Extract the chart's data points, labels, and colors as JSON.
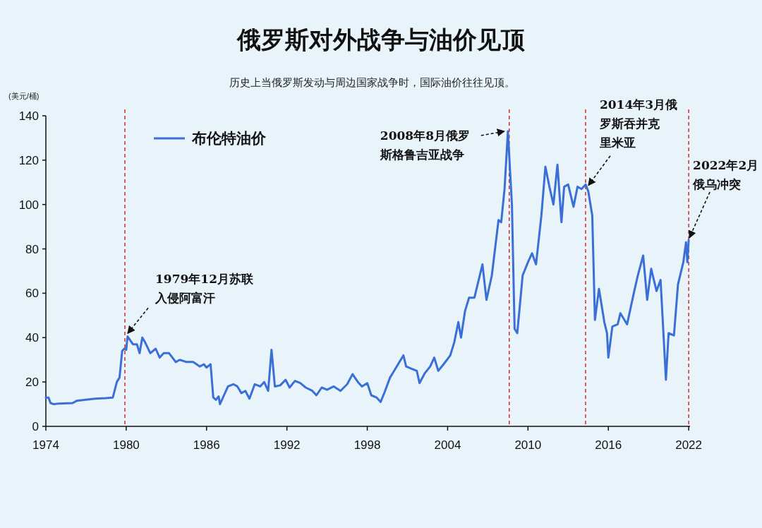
{
  "chart_data": {
    "type": "line",
    "title": "俄罗斯对外战争与油价见顶",
    "subtitle": "历史上当俄罗斯发动与周边国家战争时，国际油价往往见顶。",
    "ylabel": "(美元/桶)",
    "x": [
      1974.0,
      1974.2,
      1974.35,
      1974.6,
      1975,
      1976,
      1976.3,
      1977,
      1977.7,
      1978.5,
      1979.0,
      1979.3,
      1979.5,
      1979.7,
      1979.85,
      1980.0,
      1980.1,
      1980.5,
      1980.8,
      1981.0,
      1981.2,
      1981.4,
      1981.8,
      1982.2,
      1982.5,
      1982.8,
      1983.2,
      1983.7,
      1984,
      1984.5,
      1985,
      1985.5,
      1985.8,
      1986.0,
      1986.3,
      1986.5,
      1986.7,
      1986.9,
      1987.0,
      1987.3,
      1987.6,
      1988.0,
      1988.3,
      1988.6,
      1988.9,
      1989.2,
      1989.6,
      1990.0,
      1990.3,
      1990.6,
      1990.85,
      1991.1,
      1991.5,
      1991.9,
      1992.2,
      1992.6,
      1993,
      1993.4,
      1993.9,
      1994.2,
      1994.6,
      1995,
      1995.5,
      1996,
      1996.5,
      1996.9,
      1997.3,
      1997.6,
      1998,
      1998.3,
      1998.7,
      1999.0,
      1999.3,
      1999.7,
      2000.0,
      2000.3,
      2000.7,
      2000.9,
      2001.3,
      2001.7,
      2001.9,
      2002.3,
      2002.7,
      2003.0,
      2003.3,
      2003.7,
      2004.2,
      2004.5,
      2004.8,
      2005.0,
      2005.3,
      2005.6,
      2006.0,
      2006.2,
      2006.6,
      2006.9,
      2007.3,
      2007.8,
      2008.0,
      2008.25,
      2008.5,
      2008.8,
      2009.0,
      2009.2,
      2009.6,
      2010.0,
      2010.3,
      2010.6,
      2011.0,
      2011.3,
      2011.6,
      2011.9,
      2012.2,
      2012.5,
      2012.7,
      2013.0,
      2013.4,
      2013.7,
      2014.0,
      2014.3,
      2014.5,
      2014.8,
      2015.0,
      2015.3,
      2015.7,
      2015.9,
      2016.0,
      2016.3,
      2016.7,
      2016.9,
      2017.4,
      2017.9,
      2018.2,
      2018.6,
      2018.9,
      2019.2,
      2019.6,
      2019.9,
      2020.3,
      2020.5,
      2020.9,
      2021.2,
      2021.6,
      2021.8,
      2021.9,
      2022.0
    ],
    "series": [
      {
        "name": "布伦特油价",
        "color": "#3a6fd8",
        "values": [
          13,
          13,
          10.5,
          10,
          10.3,
          10.5,
          11.5,
          12,
          12.5,
          12.7,
          13,
          20,
          22,
          34,
          35,
          34.5,
          40.5,
          37,
          37,
          33,
          40,
          38,
          33,
          35,
          31,
          33,
          33,
          29,
          30,
          29,
          29,
          27,
          28,
          26.5,
          28,
          13,
          12,
          13.5,
          10,
          14,
          18,
          19,
          18,
          15,
          16,
          12.5,
          19,
          18,
          20,
          16,
          34.5,
          18,
          18.5,
          21,
          17.5,
          20.5,
          19.5,
          17.5,
          16,
          14,
          17.5,
          16.5,
          18,
          16,
          19,
          23.5,
          20,
          18,
          19.5,
          14,
          13,
          11,
          15.5,
          22,
          25,
          28,
          32,
          27,
          26,
          25,
          19.5,
          24,
          27,
          31,
          25,
          28,
          32,
          38,
          47,
          40,
          52,
          58,
          58,
          63,
          73,
          57,
          68,
          93,
          92,
          107,
          133,
          100,
          44,
          42,
          68,
          74,
          78,
          73,
          95,
          117,
          108,
          100,
          118,
          92,
          108,
          109,
          99,
          108,
          107,
          109,
          106,
          95,
          48,
          62,
          47,
          42,
          31,
          45,
          46,
          51,
          46,
          60,
          68,
          77,
          57,
          71,
          61,
          66,
          21,
          42,
          41,
          64,
          74,
          83,
          74,
          84
        ]
      }
    ],
    "xlim": [
      1974,
      2022.1
    ],
    "xticks": [
      1974,
      1980,
      1986,
      1992,
      1998,
      2004,
      2010,
      2016,
      2022
    ],
    "ylim": [
      0,
      140
    ],
    "yticks": [
      0,
      20,
      40,
      60,
      80,
      100,
      120,
      140
    ],
    "legend": "top left",
    "grid": false,
    "marker": "none",
    "line_style": "solid",
    "ref_lines": [
      {
        "axis": "x",
        "value": 1979.9,
        "color": "#d62a2a",
        "line_style": "dashed"
      },
      {
        "axis": "x",
        "value": 2008.6,
        "color": "#d62a2a",
        "line_style": "dashed"
      },
      {
        "axis": "x",
        "value": 2014.3,
        "color": "#d62a2a",
        "line_style": "dashed"
      },
      {
        "axis": "x",
        "value": 2022.0,
        "color": "#d62a2a",
        "line_style": "dashed"
      }
    ],
    "annotations": [
      {
        "text": "1979年12月苏联入侵阿富汗",
        "x": 1979.9,
        "y": 40
      },
      {
        "text": "2008年8月俄罗斯格鲁吉亚战争",
        "x": 2008.5,
        "y": 133
      },
      {
        "text": "2014年3月俄罗斯吞并克里米亚",
        "x": 2014.3,
        "y": 107
      },
      {
        "text": "2022年2月俄乌冲突",
        "x": 2022.0,
        "y": 84
      }
    ]
  }
}
